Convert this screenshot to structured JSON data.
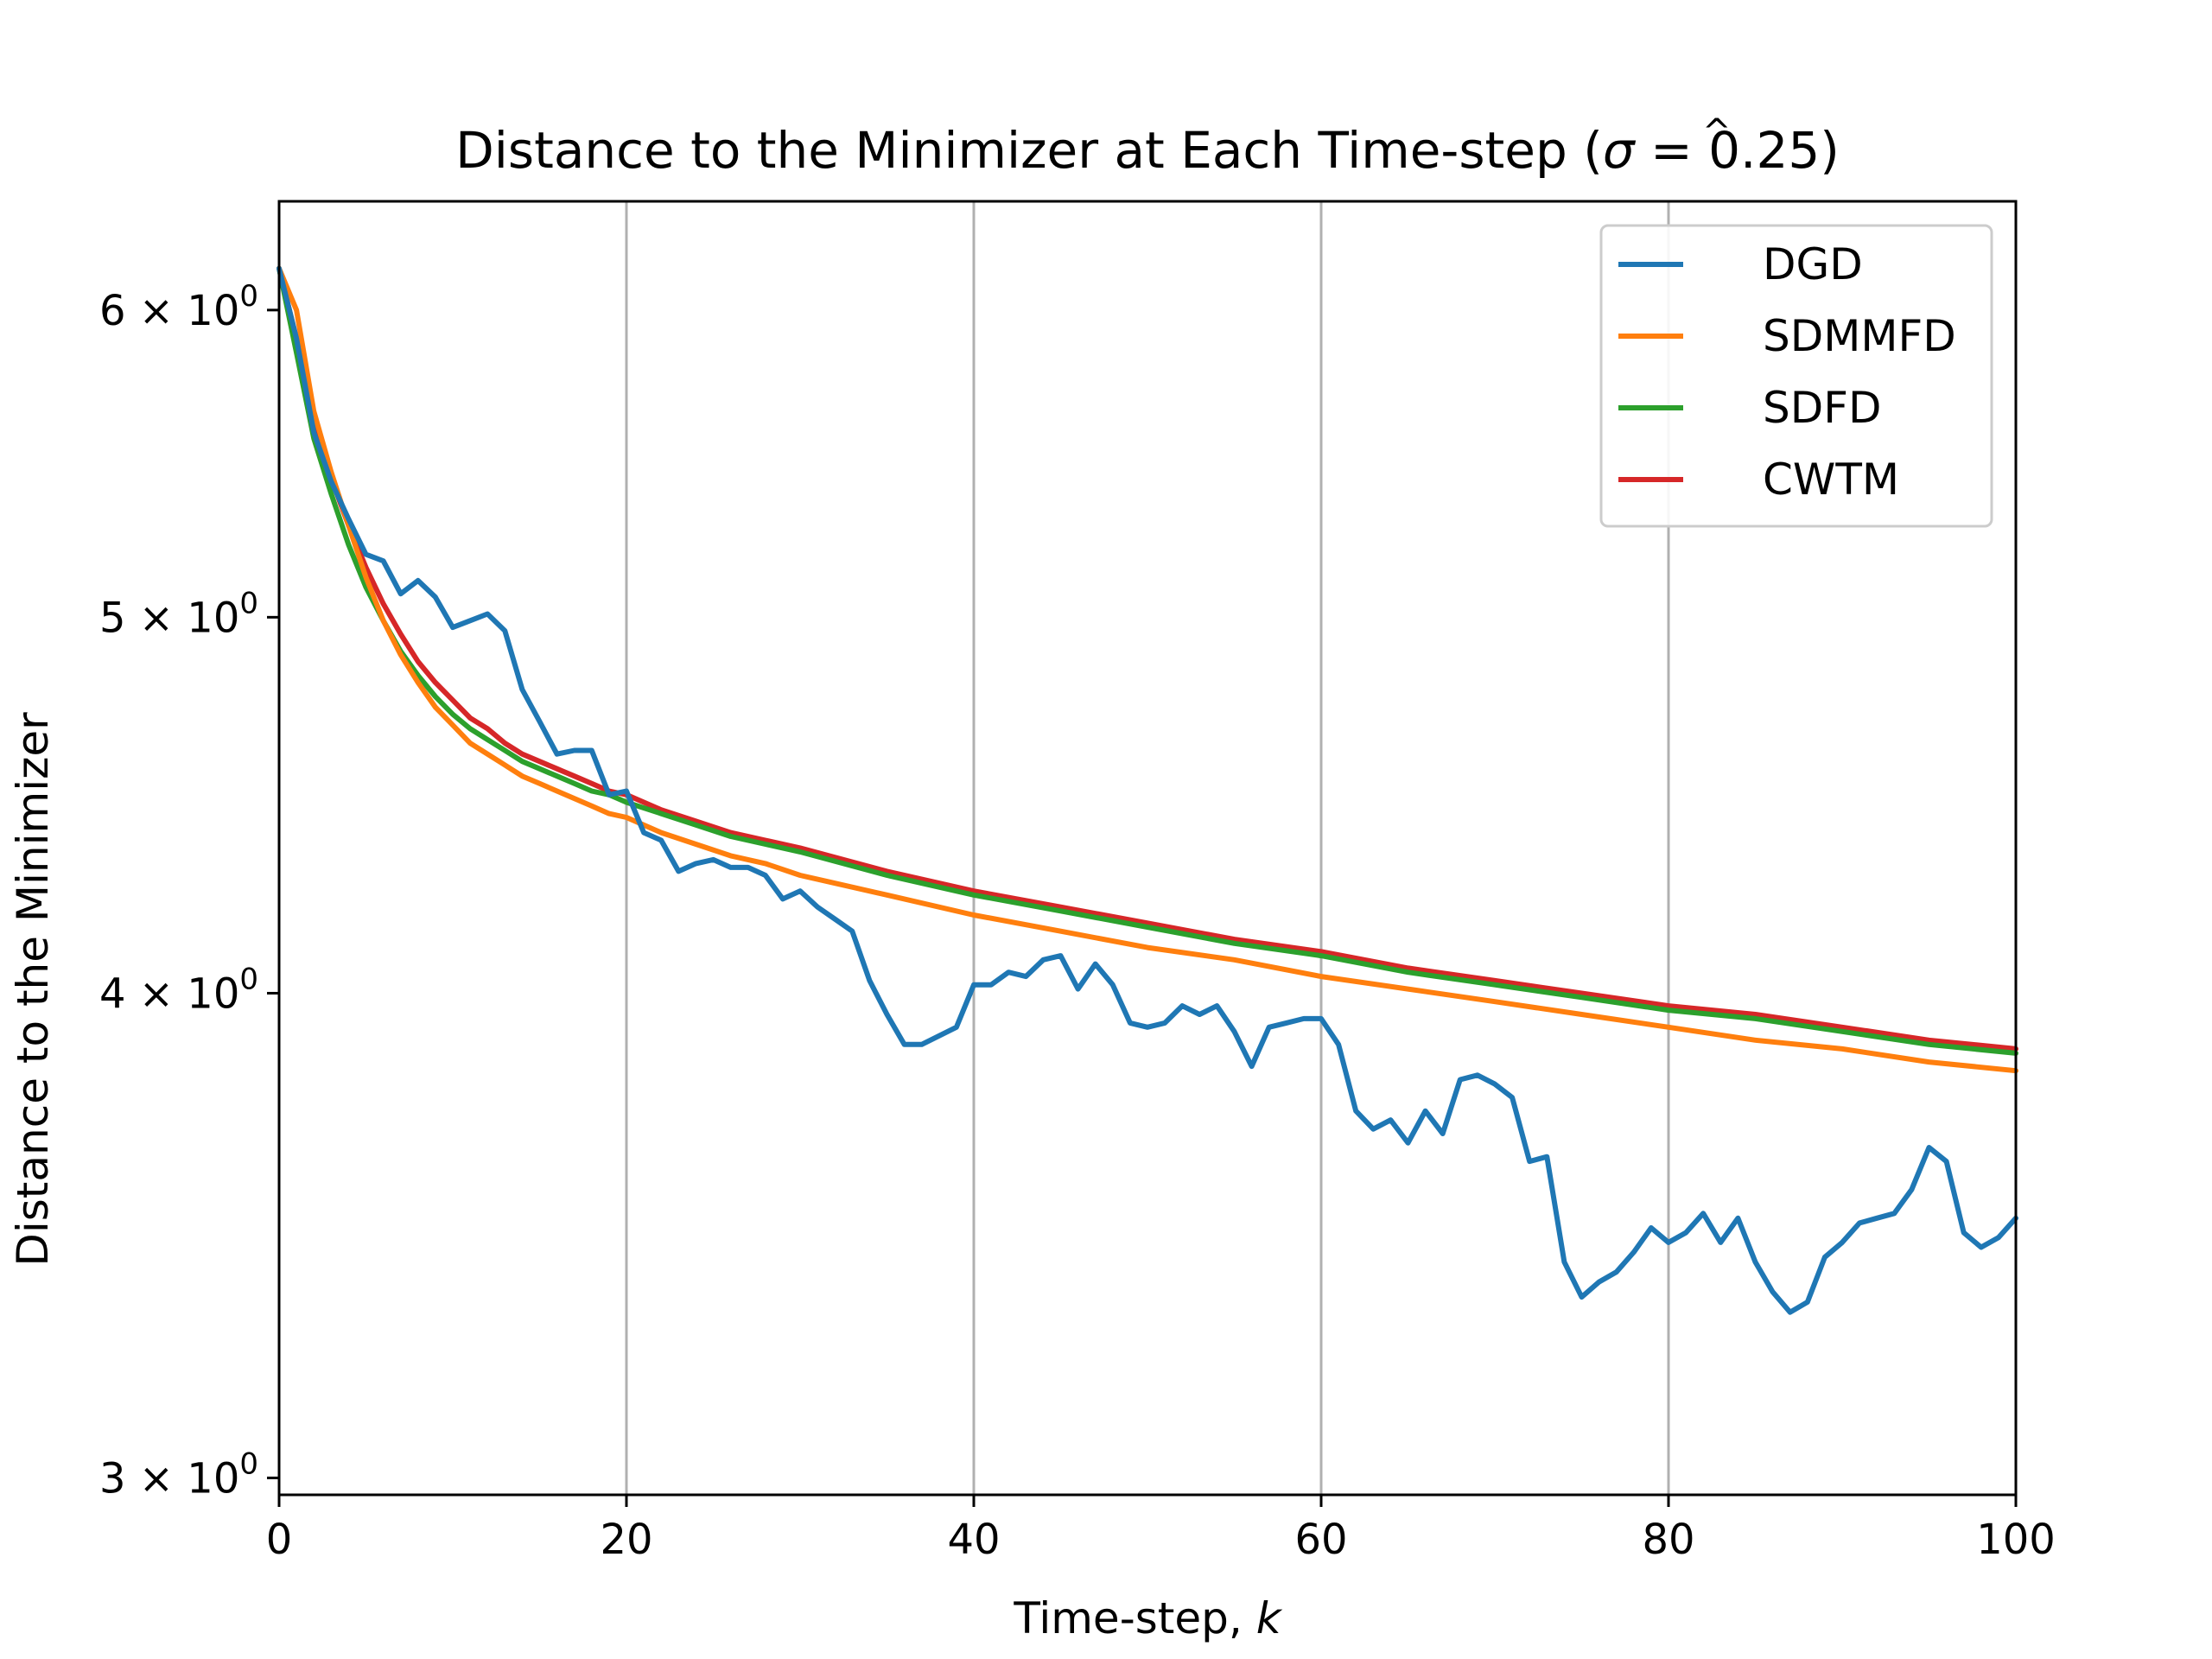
{
  "chart_data": {
    "type": "line",
    "title": "Distance to the Minimizer at Each Time-step (σ̂ = 0.25)",
    "title_parts": {
      "pre": "Distance to the Minimizer at Each Time-step (",
      "sigma": "σ",
      "hat": "^",
      "post": " = 0.25)"
    },
    "xlabel": "Time-step, ",
    "xlabel_var": "k",
    "ylabel": "Distance to the Minimizer",
    "xlim": [
      0,
      100
    ],
    "ylim": [
      2.97,
      6.4
    ],
    "yscale": "log",
    "grid": "vertical lines at x major ticks",
    "legend_position": "top-right",
    "x_ticks": [
      {
        "value": 0,
        "label": "0"
      },
      {
        "value": 20,
        "label": "20"
      },
      {
        "value": 40,
        "label": "40"
      },
      {
        "value": 60,
        "label": "60"
      },
      {
        "value": 80,
        "label": "80"
      },
      {
        "value": 100,
        "label": "100"
      }
    ],
    "y_ticks": [
      {
        "value": 3,
        "mant": "3",
        "sep": " × ",
        "base": "10",
        "exp": "0"
      },
      {
        "value": 4,
        "mant": "4",
        "sep": " × ",
        "base": "10",
        "exp": "0"
      },
      {
        "value": 5,
        "mant": "5",
        "sep": " × ",
        "base": "10",
        "exp": "0"
      },
      {
        "value": 6,
        "mant": "6",
        "sep": " × ",
        "base": "10",
        "exp": "0"
      }
    ],
    "series": [
      {
        "name": "DGD",
        "color": "#1f77b4",
        "x": [
          0,
          1,
          2,
          3,
          4,
          5,
          6,
          7,
          8,
          9,
          10,
          11,
          12,
          13,
          14,
          15,
          16,
          17,
          18,
          19,
          20,
          21,
          22,
          23,
          24,
          25,
          26,
          27,
          28,
          29,
          30,
          31,
          32,
          33,
          34,
          35,
          36,
          37,
          38,
          39,
          40,
          41,
          42,
          43,
          44,
          45,
          46,
          47,
          48,
          49,
          50,
          51,
          52,
          53,
          54,
          55,
          56,
          57,
          58,
          59,
          60,
          61,
          62,
          63,
          64,
          65,
          66,
          67,
          68,
          69,
          70,
          71,
          72,
          73,
          74,
          75,
          76,
          77,
          78,
          79,
          80,
          81,
          82,
          83,
          84,
          85,
          86,
          87,
          88,
          89,
          90,
          91,
          92,
          93,
          94,
          95,
          96,
          97,
          98,
          99,
          100
        ],
        "y": [
          6.15,
          5.9,
          5.58,
          5.42,
          5.3,
          5.19,
          5.17,
          5.07,
          5.11,
          5.06,
          4.97,
          4.99,
          5.01,
          4.96,
          4.79,
          4.7,
          4.61,
          4.62,
          4.62,
          4.5,
          4.51,
          4.4,
          4.38,
          4.3,
          4.32,
          4.33,
          4.31,
          4.31,
          4.29,
          4.23,
          4.25,
          4.21,
          4.18,
          4.15,
          4.03,
          3.95,
          3.88,
          3.88,
          3.9,
          3.92,
          4.02,
          4.02,
          4.05,
          4.04,
          4.08,
          4.09,
          4.01,
          4.07,
          4.02,
          3.93,
          3.92,
          3.93,
          3.97,
          3.95,
          3.97,
          3.91,
          3.83,
          3.92,
          3.93,
          3.94,
          3.94,
          3.88,
          3.73,
          3.69,
          3.71,
          3.66,
          3.73,
          3.68,
          3.8,
          3.81,
          3.79,
          3.76,
          3.62,
          3.63,
          3.41,
          3.34,
          3.37,
          3.39,
          3.43,
          3.48,
          3.45,
          3.47,
          3.51,
          3.45,
          3.5,
          3.41,
          3.35,
          3.31,
          3.33,
          3.42,
          3.45,
          3.49,
          3.5,
          3.51,
          3.56,
          3.65,
          3.62,
          3.47,
          3.44,
          3.46,
          3.5
        ]
      },
      {
        "name": "SDMMFD",
        "color": "#ff7f0e",
        "x": [
          0,
          1,
          2,
          3,
          4,
          5,
          6,
          7,
          8,
          9,
          10,
          11,
          12,
          13,
          14,
          15,
          16,
          17,
          18,
          19,
          20,
          22,
          24,
          26,
          28,
          30,
          35,
          40,
          45,
          50,
          55,
          60,
          65,
          70,
          75,
          80,
          85,
          90,
          95,
          100
        ],
        "y": [
          6.15,
          6.0,
          5.65,
          5.45,
          5.28,
          5.12,
          4.99,
          4.89,
          4.81,
          4.74,
          4.69,
          4.64,
          4.61,
          4.58,
          4.55,
          4.53,
          4.51,
          4.49,
          4.47,
          4.45,
          4.44,
          4.4,
          4.37,
          4.34,
          4.32,
          4.29,
          4.24,
          4.19,
          4.15,
          4.11,
          4.08,
          4.04,
          4.01,
          3.98,
          3.95,
          3.92,
          3.89,
          3.87,
          3.84,
          3.82
        ]
      },
      {
        "name": "SDFD",
        "color": "#2ca02c",
        "x": [
          0,
          1,
          2,
          3,
          4,
          5,
          6,
          7,
          8,
          9,
          10,
          11,
          12,
          13,
          14,
          15,
          16,
          17,
          18,
          19,
          20,
          22,
          24,
          26,
          28,
          30,
          35,
          40,
          45,
          50,
          55,
          60,
          65,
          70,
          75,
          80,
          85,
          90,
          95,
          100
        ],
        "y": [
          6.15,
          5.85,
          5.56,
          5.38,
          5.22,
          5.09,
          4.99,
          4.9,
          4.83,
          4.77,
          4.72,
          4.68,
          4.65,
          4.62,
          4.59,
          4.57,
          4.55,
          4.53,
          4.51,
          4.5,
          4.48,
          4.45,
          4.42,
          4.39,
          4.37,
          4.35,
          4.29,
          4.24,
          4.2,
          4.16,
          4.12,
          4.09,
          4.05,
          4.02,
          3.99,
          3.96,
          3.94,
          3.91,
          3.88,
          3.86
        ]
      },
      {
        "name": "CWTM",
        "color": "#d62728",
        "x": [
          0,
          1,
          2,
          3,
          4,
          5,
          6,
          7,
          8,
          9,
          10,
          11,
          12,
          13,
          14,
          15,
          16,
          17,
          18,
          19,
          20,
          22,
          24,
          26,
          28,
          30,
          35,
          40,
          45,
          50,
          55,
          60,
          65,
          70,
          75,
          80,
          85,
          90,
          95,
          100
        ],
        "y": [
          6.15,
          5.9,
          5.61,
          5.43,
          5.28,
          5.15,
          5.04,
          4.95,
          4.87,
          4.81,
          4.76,
          4.71,
          4.68,
          4.64,
          4.61,
          4.59,
          4.57,
          4.55,
          4.53,
          4.51,
          4.5,
          4.46,
          4.43,
          4.4,
          4.38,
          4.36,
          4.3,
          4.25,
          4.21,
          4.17,
          4.13,
          4.1,
          4.06,
          4.03,
          4.0,
          3.97,
          3.95,
          3.92,
          3.89,
          3.87
        ]
      }
    ]
  }
}
